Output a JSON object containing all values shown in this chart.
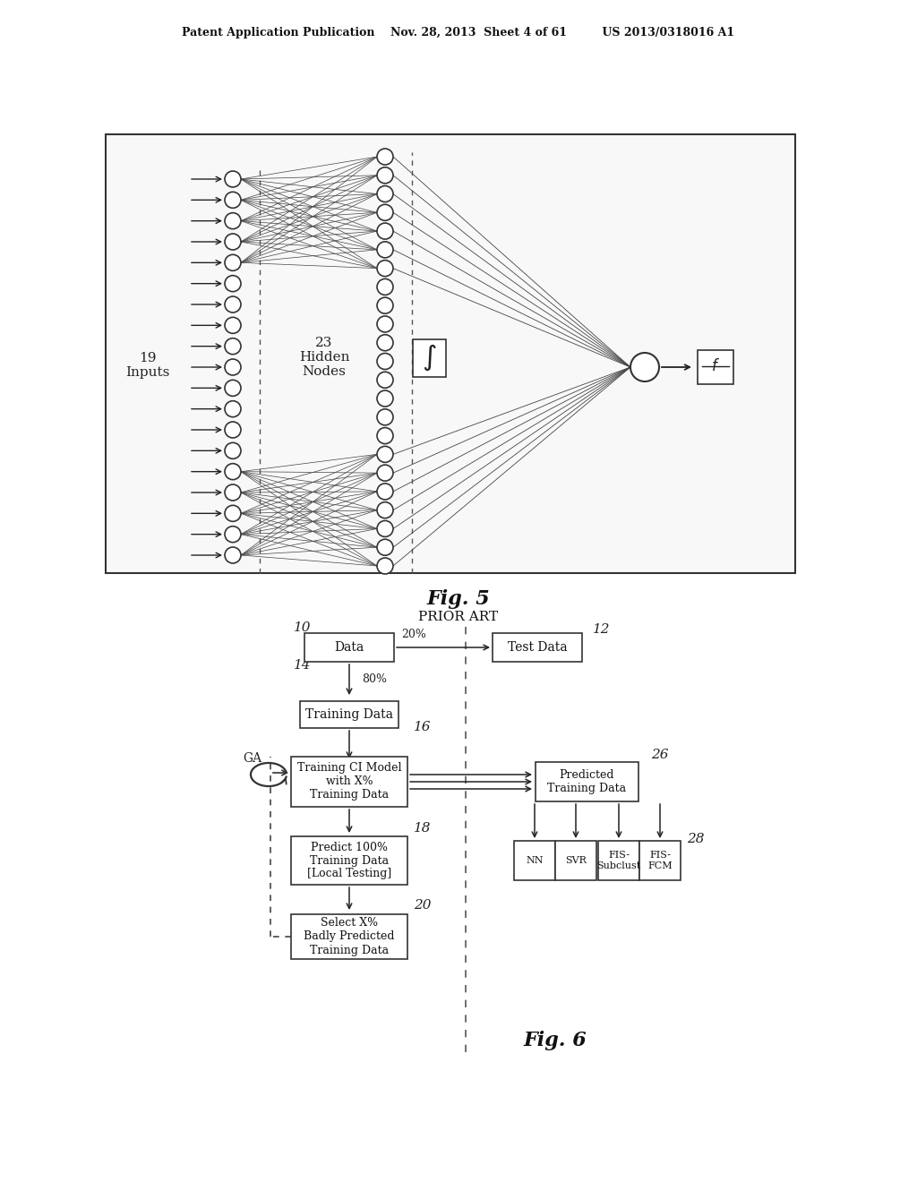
{
  "bg_color": "#ffffff",
  "header_text": "Patent Application Publication    Nov. 28, 2013  Sheet 4 of 61         US 2013/0318016 A1",
  "fig5_title": "Fig. 5",
  "fig5_subtitle": "PRIOR ART",
  "fig6_title": "Fig. 6",
  "num_inputs": 19,
  "num_hidden": 23,
  "label_inputs": "19\nInputs",
  "label_hidden": "23\nHidden\nNodes",
  "box_color": "#ffffff",
  "line_color": "#000000",
  "node_facecolor": "#ffffff",
  "node_edgecolor": "#000000"
}
